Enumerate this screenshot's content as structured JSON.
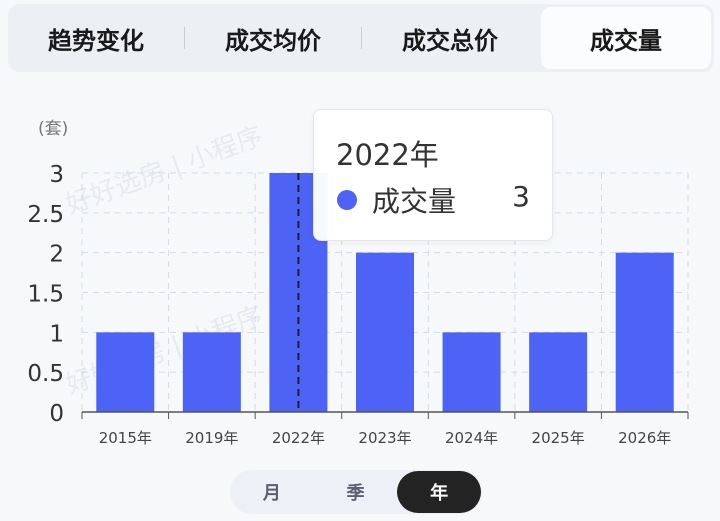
{
  "tabs": [
    {
      "label": "趋势变化",
      "active": false
    },
    {
      "label": "成交均价",
      "active": false
    },
    {
      "label": "成交总价",
      "active": false
    },
    {
      "label": "成交量",
      "active": true
    }
  ],
  "watermark": "好好选房 | 小程序",
  "tooltip": {
    "title": "2022年",
    "series_label": "成交量",
    "value": "3"
  },
  "period": [
    {
      "label": "月",
      "active": false
    },
    {
      "label": "季",
      "active": false
    },
    {
      "label": "年",
      "active": true
    }
  ],
  "chart_data": {
    "type": "bar",
    "unit_label": "(套)",
    "categories": [
      "2015年",
      "2019年",
      "2022年",
      "2023年",
      "2024年",
      "2025年",
      "2026年"
    ],
    "values": [
      1,
      1,
      3,
      2,
      1,
      1,
      2
    ],
    "ylim": [
      0,
      3
    ],
    "yticks": [
      "0",
      "0.5",
      "1",
      "1.5",
      "2",
      "2.5",
      "3"
    ],
    "grid": true,
    "highlighted_category": "2022年",
    "bar_color": "#4d63f5"
  }
}
